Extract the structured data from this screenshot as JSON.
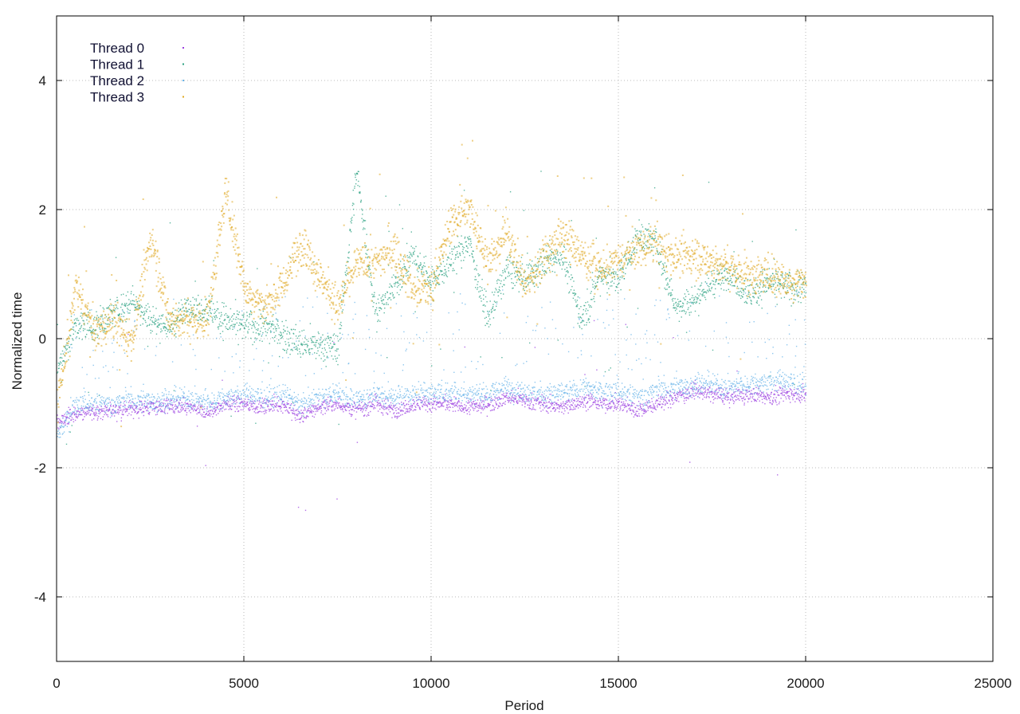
{
  "chart_data": {
    "type": "scatter",
    "title": "",
    "xlabel": "Period",
    "ylabel": "Normalized time",
    "xlim": [
      0,
      25000
    ],
    "ylim": [
      -5,
      5
    ],
    "x_ticks": [
      0,
      5000,
      10000,
      15000,
      20000,
      25000
    ],
    "y_ticks": [
      -4,
      -2,
      0,
      2,
      4
    ],
    "x_tick_labels": [
      "0",
      "5000",
      "10000",
      "15000",
      "20000",
      "25000"
    ],
    "y_tick_labels": [
      "-4",
      "-2",
      "0",
      "2",
      "4"
    ],
    "grid": true,
    "legend_position": "top-left",
    "series": [
      {
        "name": "Thread 0",
        "color": "#9b3fe0",
        "x": [
          0,
          500,
          1000,
          1500,
          2000,
          2500,
          3000,
          3500,
          4000,
          4500,
          5000,
          5500,
          6000,
          6500,
          7000,
          7500,
          8000,
          8500,
          9000,
          9500,
          10000,
          10500,
          11000,
          11500,
          12000,
          12500,
          13000,
          13500,
          14000,
          14500,
          15000,
          15500,
          16000,
          16500,
          17000,
          17500,
          18000,
          18500,
          19000,
          19500,
          20000
        ],
        "values": [
          -1.3,
          -1.15,
          -1.12,
          -1.1,
          -1.08,
          -1.05,
          -1.05,
          -1.05,
          -1.15,
          -1.0,
          -1.0,
          -1.05,
          -1.0,
          -1.2,
          -1.05,
          -1.0,
          -1.1,
          -1.0,
          -1.1,
          -1.0,
          -1.0,
          -1.0,
          -1.05,
          -1.0,
          -0.9,
          -0.95,
          -1.0,
          -1.05,
          -0.95,
          -1.0,
          -1.0,
          -1.1,
          -1.0,
          -0.9,
          -0.8,
          -0.85,
          -0.9,
          -0.85,
          -0.9,
          -0.85,
          -0.85
        ]
      },
      {
        "name": "Thread 1",
        "color": "#2aa080",
        "x": [
          0,
          500,
          1000,
          1500,
          2000,
          2500,
          3000,
          3500,
          4000,
          4500,
          5000,
          5500,
          6000,
          6500,
          7000,
          7500,
          8000,
          8500,
          9000,
          9500,
          10000,
          10500,
          11000,
          11500,
          12000,
          12500,
          13000,
          13500,
          14000,
          14500,
          15000,
          15500,
          16000,
          16500,
          17000,
          17500,
          18000,
          18500,
          19000,
          19500,
          20000
        ],
        "values": [
          -0.5,
          0.2,
          0.2,
          0.4,
          0.6,
          0.3,
          0.2,
          0.5,
          0.5,
          0.3,
          0.2,
          0.2,
          0.1,
          -0.1,
          -0.1,
          -0.15,
          2.6,
          0.4,
          0.8,
          1.3,
          0.9,
          1.2,
          1.5,
          0.3,
          1.1,
          0.9,
          1.2,
          1.3,
          0.3,
          1.0,
          0.9,
          1.6,
          1.5,
          0.5,
          0.6,
          0.9,
          1.0,
          0.7,
          0.9,
          0.8,
          0.8
        ]
      },
      {
        "name": "Thread 2",
        "color": "#6ab4e8",
        "x": [
          0,
          500,
          1000,
          1500,
          2000,
          2500,
          3000,
          3500,
          4000,
          4500,
          5000,
          5500,
          6000,
          6500,
          7000,
          7500,
          8000,
          8500,
          9000,
          9500,
          10000,
          10500,
          11000,
          11500,
          12000,
          12500,
          13000,
          13500,
          14000,
          14500,
          15000,
          15500,
          16000,
          16500,
          17000,
          17500,
          18000,
          18500,
          19000,
          19500,
          20000
        ],
        "values": [
          -1.5,
          -1.0,
          -1.0,
          -1.0,
          -0.95,
          -0.95,
          -0.95,
          -0.9,
          -1.0,
          -0.9,
          -0.85,
          -0.9,
          -0.85,
          -1.0,
          -0.9,
          -0.85,
          -0.95,
          -0.85,
          -0.9,
          -0.85,
          -0.85,
          -0.8,
          -0.85,
          -0.85,
          -0.75,
          -0.8,
          -0.85,
          -0.85,
          -0.75,
          -0.8,
          -0.8,
          -0.9,
          -0.8,
          -0.75,
          -0.7,
          -0.7,
          -0.75,
          -0.7,
          -0.65,
          -0.65,
          -0.7
        ]
      },
      {
        "name": "Thread 3",
        "color": "#e0a820",
        "x": [
          0,
          500,
          1000,
          1500,
          2000,
          2500,
          3000,
          3500,
          4000,
          4500,
          5000,
          5500,
          6000,
          6500,
          7000,
          7500,
          8000,
          8500,
          9000,
          9500,
          10000,
          10500,
          11000,
          11500,
          12000,
          12500,
          13000,
          13500,
          14000,
          14500,
          15000,
          15500,
          16000,
          16500,
          17000,
          17500,
          18000,
          18500,
          19000,
          19500,
          20000
        ],
        "values": [
          -1.0,
          0.8,
          0.1,
          0.3,
          0.0,
          1.6,
          0.3,
          0.3,
          0.3,
          2.3,
          0.8,
          0.5,
          0.8,
          1.5,
          1.0,
          0.5,
          1.2,
          1.2,
          1.4,
          0.8,
          0.8,
          1.8,
          2.0,
          1.2,
          1.7,
          0.8,
          1.3,
          1.6,
          1.3,
          1.1,
          1.2,
          1.4,
          1.5,
          1.3,
          1.3,
          1.2,
          1.1,
          1.0,
          1.0,
          0.9,
          0.9
        ]
      }
    ]
  }
}
